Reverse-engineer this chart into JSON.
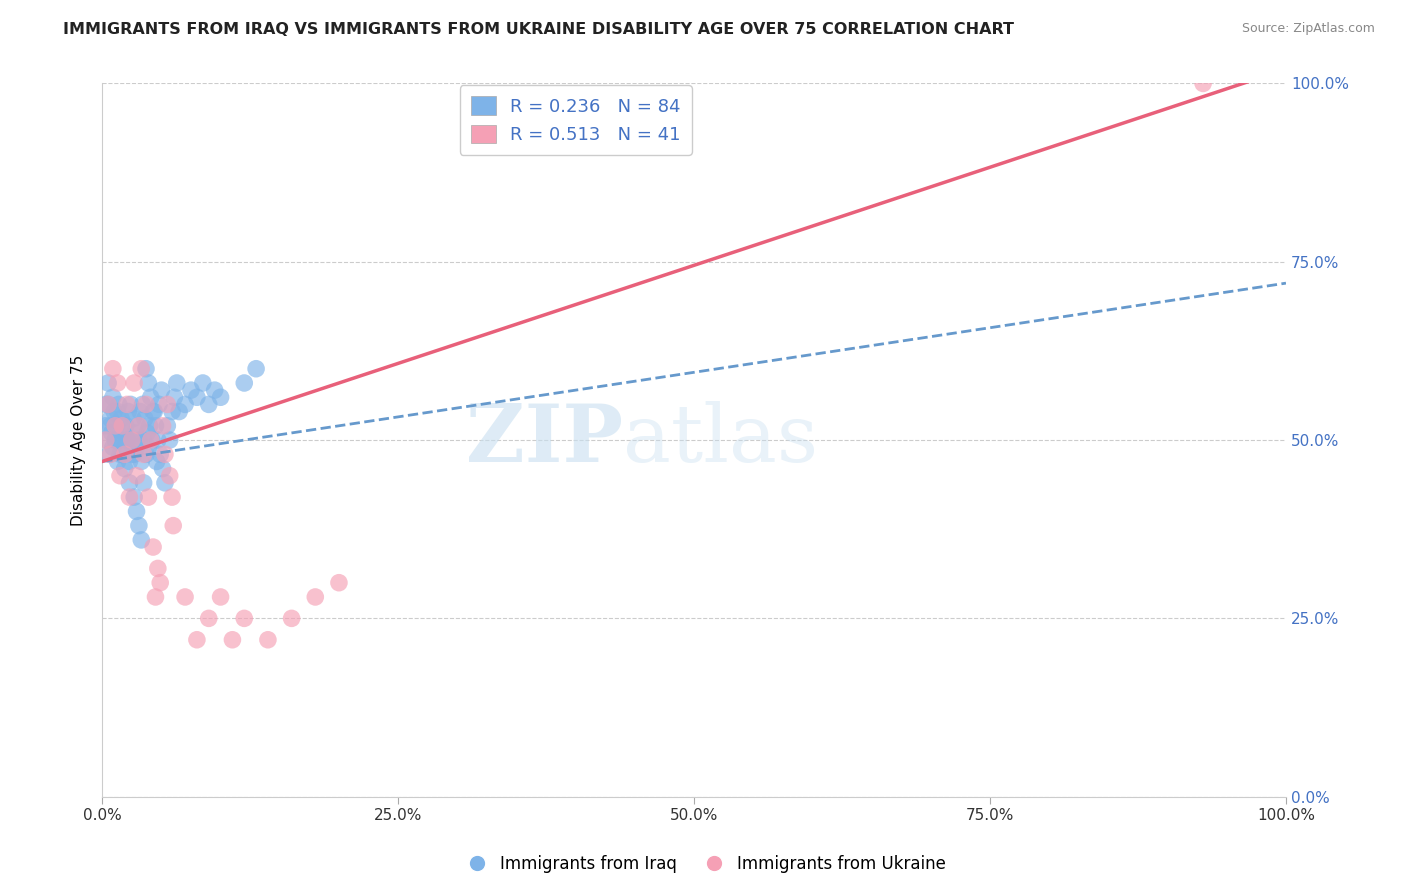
{
  "title": "IMMIGRANTS FROM IRAQ VS IMMIGRANTS FROM UKRAINE DISABILITY AGE OVER 75 CORRELATION CHART",
  "source": "Source: ZipAtlas.com",
  "xlabel": "",
  "ylabel": "Disability Age Over 75",
  "watermark_zip": "ZIP",
  "watermark_atlas": "atlas",
  "xlim": [
    0.0,
    1.0
  ],
  "ylim": [
    0.0,
    1.0
  ],
  "xticks": [
    0.0,
    0.25,
    0.5,
    0.75,
    1.0
  ],
  "yticks": [
    0.0,
    0.25,
    0.5,
    0.75,
    1.0
  ],
  "xtick_labels": [
    "0.0%",
    "25.0%",
    "50.0%",
    "75.0%",
    "100.0%"
  ],
  "ytick_labels": [
    "0.0%",
    "25.0%",
    "50.0%",
    "75.0%",
    "100.0%"
  ],
  "iraq_color": "#7EB3E8",
  "ukraine_color": "#F5A0B5",
  "iraq_R": 0.236,
  "iraq_N": 84,
  "ukraine_R": 0.513,
  "ukraine_N": 41,
  "iraq_line_color": "#6699CC",
  "iraq_line_style": "--",
  "ukraine_line_color": "#E8607A",
  "ukraine_line_style": "-",
  "legend_text_color": "#4472C4",
  "iraq_line_x0": 0.0,
  "iraq_line_y0": 0.47,
  "iraq_line_x1": 1.0,
  "iraq_line_y1": 0.72,
  "ukraine_line_x0": 0.0,
  "ukraine_line_y0": 0.47,
  "ukraine_line_x1": 1.0,
  "ukraine_line_y1": 1.02,
  "iraq_points_x": [
    0.003,
    0.004,
    0.005,
    0.006,
    0.007,
    0.008,
    0.009,
    0.01,
    0.011,
    0.012,
    0.013,
    0.014,
    0.015,
    0.016,
    0.017,
    0.018,
    0.019,
    0.02,
    0.021,
    0.022,
    0.023,
    0.024,
    0.025,
    0.026,
    0.027,
    0.028,
    0.029,
    0.03,
    0.031,
    0.032,
    0.033,
    0.034,
    0.035,
    0.036,
    0.037,
    0.038,
    0.039,
    0.04,
    0.042,
    0.044,
    0.046,
    0.048,
    0.05,
    0.003,
    0.005,
    0.007,
    0.009,
    0.011,
    0.013,
    0.015,
    0.017,
    0.019,
    0.021,
    0.023,
    0.025,
    0.027,
    0.029,
    0.031,
    0.033,
    0.035,
    0.037,
    0.039,
    0.041,
    0.043,
    0.045,
    0.047,
    0.049,
    0.051,
    0.053,
    0.055,
    0.057,
    0.059,
    0.061,
    0.063,
    0.065,
    0.07,
    0.075,
    0.08,
    0.085,
    0.09,
    0.095,
    0.1,
    0.12,
    0.13
  ],
  "iraq_points_y": [
    0.52,
    0.5,
    0.55,
    0.48,
    0.53,
    0.51,
    0.49,
    0.54,
    0.5,
    0.52,
    0.47,
    0.55,
    0.5,
    0.53,
    0.48,
    0.51,
    0.49,
    0.52,
    0.5,
    0.54,
    0.47,
    0.55,
    0.5,
    0.53,
    0.48,
    0.51,
    0.49,
    0.52,
    0.5,
    0.54,
    0.47,
    0.55,
    0.5,
    0.53,
    0.48,
    0.51,
    0.49,
    0.52,
    0.5,
    0.54,
    0.47,
    0.55,
    0.57,
    0.55,
    0.58,
    0.52,
    0.56,
    0.5,
    0.54,
    0.48,
    0.52,
    0.46,
    0.5,
    0.44,
    0.48,
    0.42,
    0.4,
    0.38,
    0.36,
    0.44,
    0.6,
    0.58,
    0.56,
    0.54,
    0.52,
    0.5,
    0.48,
    0.46,
    0.44,
    0.52,
    0.5,
    0.54,
    0.56,
    0.58,
    0.54,
    0.55,
    0.57,
    0.56,
    0.58,
    0.55,
    0.57,
    0.56,
    0.58,
    0.6
  ],
  "ukraine_points_x": [
    0.003,
    0.005,
    0.007,
    0.009,
    0.011,
    0.013,
    0.015,
    0.017,
    0.019,
    0.021,
    0.023,
    0.025,
    0.027,
    0.029,
    0.031,
    0.033,
    0.035,
    0.037,
    0.039,
    0.041,
    0.043,
    0.045,
    0.047,
    0.049,
    0.051,
    0.053,
    0.055,
    0.057,
    0.059,
    0.06,
    0.07,
    0.08,
    0.09,
    0.1,
    0.11,
    0.12,
    0.14,
    0.16,
    0.18,
    0.2,
    0.93
  ],
  "ukraine_points_y": [
    0.5,
    0.55,
    0.48,
    0.6,
    0.52,
    0.58,
    0.45,
    0.52,
    0.48,
    0.55,
    0.42,
    0.5,
    0.58,
    0.45,
    0.52,
    0.6,
    0.48,
    0.55,
    0.42,
    0.5,
    0.35,
    0.28,
    0.32,
    0.3,
    0.52,
    0.48,
    0.55,
    0.45,
    0.42,
    0.38,
    0.28,
    0.22,
    0.25,
    0.28,
    0.22,
    0.25,
    0.22,
    0.25,
    0.28,
    0.3,
    1.0
  ],
  "background_color": "#ffffff",
  "grid_color": "#cccccc",
  "title_fontsize": 11.5,
  "label_fontsize": 11,
  "tick_fontsize": 11,
  "tick_color_right": "#4472C4",
  "right_ytick_labels": [
    "0.0%",
    "25.0%",
    "50.0%",
    "75.0%",
    "100.0%"
  ]
}
